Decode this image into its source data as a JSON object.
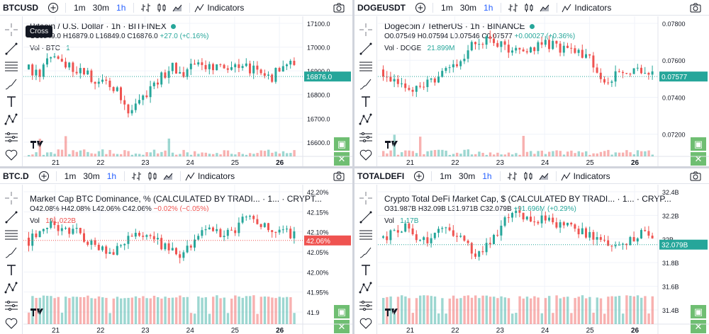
{
  "colors": {
    "up": "#26a69a",
    "down": "#ef5350",
    "accent": "#2962ff"
  },
  "toolbar": {
    "timeframes": [
      "1m",
      "30m",
      "1h"
    ],
    "active": "1h",
    "indicators_label": "Indicators"
  },
  "tooltip": {
    "cross": "Cross"
  },
  "panes": [
    {
      "symbol": "BTCUSD",
      "title": "Bitcoin / U.S. Dollar · 1h · BITFINEX",
      "ohlc": {
        "o": "O16849.0",
        "h": "H16879.0",
        "l": "L16849.0",
        "c": "C16876.0",
        "chg": "+27.0 (+0.16%)"
      },
      "vol_label": "Vol · BTC",
      "vol_value": "1",
      "price_tag": "16876.0",
      "y_labels": [
        "17100.0",
        "17000.0",
        "16900.0",
        "16800.0",
        "16700.0",
        "16600.0"
      ],
      "x_labels": [
        "21",
        "22",
        "23",
        "24",
        "25",
        "26"
      ],
      "chart_data": {
        "type": "candlestick",
        "ylim": [
          16560,
          17110
        ],
        "x": [
          "21",
          "22",
          "23",
          "24",
          "25",
          "26"
        ],
        "last": 16876.0
      }
    },
    {
      "symbol": "DOGEUSDT",
      "title": "Dogecoin / TetherUS · 1h · BINANCE",
      "ohlc": {
        "o": "O0.07549",
        "h": "H0.07594",
        "l": "L0.07546",
        "c": "C0.07577",
        "chg": "+0.00027 (+0.36%)"
      },
      "vol_label": "Vol · DOGE",
      "vol_value": "21.899M",
      "price_tag": "0.07577",
      "y_labels": [
        "0.07800",
        "0.07600",
        "0.07400",
        "0.07200"
      ],
      "x_labels": [
        "21",
        "22",
        "23",
        "24",
        "25",
        "26"
      ],
      "chart_data": {
        "type": "candlestick",
        "ylim": [
          0.071,
          0.0795
        ],
        "x": [
          "21",
          "22",
          "23",
          "24",
          "25",
          "26"
        ],
        "last": 0.07577
      }
    },
    {
      "symbol": "BTC.D",
      "title": "Market Cap BTC Dominance, % (CALCULATED BY TRADI... · 1... · CRYPT...",
      "ohlc": {
        "o": "O42.08%",
        "h": "H42.08%",
        "l": "L42.06%",
        "c": "C42.06%",
        "chg": "−0.02% (−0.05%)"
      },
      "vol_label": "Vol",
      "vol_value": "191.022B",
      "price_tag": "42.06%",
      "y_labels": [
        "42.20%",
        "42.15%",
        "42.10%",
        "42.05%",
        "42.00%",
        "41.95%",
        "41.9"
      ],
      "x_labels": [
        "21",
        "22",
        "23",
        "24",
        "25",
        "26"
      ],
      "chart_data": {
        "type": "candlestick",
        "ylim": [
          41.88,
          42.21
        ],
        "x": [
          "21",
          "22",
          "23",
          "24",
          "25",
          "26"
        ],
        "last": 42.06
      }
    },
    {
      "symbol": "TOTALDEFI",
      "title": "Crypto Total DeFi Market Cap, $ (CALCULATED BY TRADI... · 1... · CRYP...",
      "ohlc": {
        "o": "O31.987B",
        "h": "H32.09B",
        "l": "L31.971B",
        "c": "C32.079B",
        "chg": "+91.696M (+0.29%)"
      },
      "vol_label": "Vol",
      "vol_value": "1.17B",
      "price_tag": "32.079B",
      "y_labels": [
        "32.4B",
        "32.2B",
        "32B",
        "31.8B",
        "31.6B",
        "31.4B"
      ],
      "x_labels": [
        "21",
        "22",
        "23",
        "24",
        "25",
        "26"
      ],
      "chart_data": {
        "type": "candlestick",
        "ylim": [
          31.35,
          32.45
        ],
        "x": [
          "21",
          "22",
          "23",
          "24",
          "25",
          "26"
        ],
        "last": 32.079
      }
    }
  ]
}
